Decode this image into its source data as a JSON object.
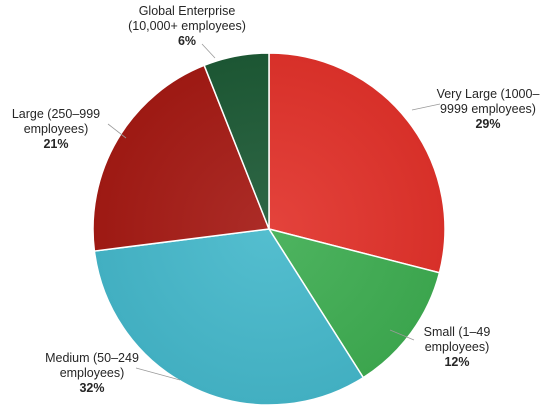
{
  "chart_data": {
    "type": "pie",
    "slices": [
      {
        "label_lines": [
          "Very Large (1000–",
          "9999 employees)"
        ],
        "value": 29,
        "value_label": "29%",
        "color": "#e2332b"
      },
      {
        "label_lines": [
          "Small (1–49",
          "employees)"
        ],
        "value": 12,
        "value_label": "12%",
        "color": "#3fae52"
      },
      {
        "label_lines": [
          "Medium (50–249",
          "employees)"
        ],
        "value": 32,
        "value_label": "32%",
        "color": "#45b8cb"
      },
      {
        "label_lines": [
          "Large (250–999",
          "employees)"
        ],
        "value": 21,
        "value_label": "21%",
        "color": "#a51a14"
      },
      {
        "label_lines": [
          "Global Enterprise",
          "(10,000+ employees)"
        ],
        "value": 6,
        "value_label": "6%",
        "color": "#1d5a36"
      }
    ]
  }
}
